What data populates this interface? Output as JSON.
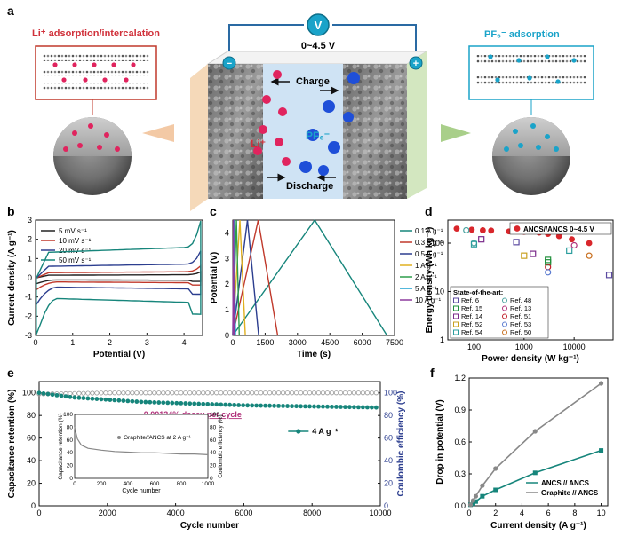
{
  "panel_a": {
    "letter": "a",
    "voltmeter_symbol": "V",
    "voltage_range": "0~4.5 V",
    "left_title": "Li⁺ adsorption/intercalation",
    "right_title": "PF₆⁻ adsorption",
    "charge_label": "Charge",
    "discharge_label": "Discharge",
    "li_label": "Li⁺",
    "pf6_label": "PF₆⁻",
    "minus_symbol": "−",
    "plus_symbol": "+",
    "colors": {
      "lithium": "#e0245e",
      "pf6": "#1f4fd8",
      "cyan_title": "#1aa3c9",
      "li_title": "#d0303a"
    }
  },
  "chart_data": [
    {
      "panel": "b",
      "type": "line",
      "title": "",
      "xlabel": "Potential (V)",
      "ylabel": "Current density (A g⁻¹)",
      "xlim": [
        0,
        4.5
      ],
      "ylim": [
        -3,
        3
      ],
      "xticks": [
        0,
        1,
        2,
        3,
        4
      ],
      "yticks": [
        -3,
        -2,
        -1,
        0,
        1,
        2,
        3
      ],
      "series": [
        {
          "name": "5 mV s⁻¹",
          "color": "#222222",
          "scale": 0.1
        },
        {
          "name": "10 mV s⁻¹",
          "color": "#c0392b",
          "scale": 0.2
        },
        {
          "name": "20 mV s⁻¹",
          "color": "#2c3e8f",
          "scale": 0.45
        },
        {
          "name": "50 mV s⁻¹",
          "color": "#16857b",
          "scale": 1.0
        }
      ]
    },
    {
      "panel": "c",
      "type": "line",
      "title": "",
      "xlabel": "Time (s)",
      "ylabel": "Potential (V)",
      "xlim": [
        0,
        7500
      ],
      "ylim": [
        0,
        4.5
      ],
      "xticks": [
        0,
        1500,
        3000,
        4500,
        6000,
        7500
      ],
      "yticks": [
        0,
        1,
        2,
        3,
        4
      ],
      "series": [
        {
          "name": "0.1 A g⁻¹",
          "color": "#16857b",
          "peak_t": 3800,
          "end_t": 7150
        },
        {
          "name": "0.3 A g⁻¹",
          "color": "#c0392b",
          "peak_t": 1180,
          "end_t": 2080
        },
        {
          "name": "0.5 A g⁻¹",
          "color": "#2c3e8f",
          "peak_t": 680,
          "end_t": 1200
        },
        {
          "name": "1 A g⁻¹",
          "color": "#e0b020",
          "peak_t": 330,
          "end_t": 580
        },
        {
          "name": "2 A g⁻¹",
          "color": "#2e9e4a",
          "peak_t": 170,
          "end_t": 300
        },
        {
          "name": "5 A g⁻¹",
          "color": "#1aa0d0",
          "peak_t": 70,
          "end_t": 125
        },
        {
          "name": "10 A g⁻¹",
          "color": "#8e3b9e",
          "peak_t": 35,
          "end_t": 62
        }
      ]
    },
    {
      "panel": "d",
      "type": "scatter",
      "title": "",
      "xlabel": "Power density (W kg⁻¹)",
      "ylabel": "Energy density (Wh kg⁻¹)",
      "xscale": "log",
      "yscale": "log",
      "xlim": [
        30,
        60000
      ],
      "ylim": [
        1,
        300
      ],
      "xtick_labels": [
        "100",
        "1000",
        "10000"
      ],
      "ytick_labels": [
        "1",
        "10",
        "100"
      ],
      "main_series": {
        "name": "ANCS//ANCS 0~4.5 V",
        "color": "#d9262b",
        "x": [
          45,
          90,
          150,
          220,
          500,
          1000,
          2000,
          3000,
          5000,
          9000,
          20000
        ],
        "y": [
          200,
          190,
          185,
          182,
          175,
          172,
          165,
          155,
          140,
          120,
          100
        ]
      },
      "refs_title": "State-of-the-art:",
      "refs": [
        {
          "name": "Ref. 6",
          "color": "#5b4aa0",
          "x": [
            700,
            50000
          ],
          "y": [
            105,
            22
          ]
        },
        {
          "name": "Ref. 48",
          "color": "#4aa3a0",
          "x": [
            70,
            100
          ],
          "y": [
            185,
            100
          ]
        },
        {
          "name": "Ref. 15",
          "color": "#1f8f3a",
          "x": [
            3000,
            3000
          ],
          "y": [
            45,
            40
          ]
        },
        {
          "name": "Ref. 13",
          "color": "#b0307a",
          "x": [
            10000
          ],
          "y": [
            90
          ]
        },
        {
          "name": "Ref. 14",
          "color": "#7a2a8a",
          "x": [
            140,
            1500
          ],
          "y": [
            120,
            60
          ]
        },
        {
          "name": "Ref. 51",
          "color": "#c0202a",
          "x": [
            3000
          ],
          "y": [
            32
          ]
        },
        {
          "name": "Ref. 52",
          "color": "#c8a020",
          "x": [
            1000
          ],
          "y": [
            55
          ]
        },
        {
          "name": "Ref. 53",
          "color": "#5b7bd0",
          "x": [
            3000
          ],
          "y": [
            25
          ]
        },
        {
          "name": "Ref. 54",
          "color": "#2c9e9e",
          "x": [
            100,
            8000
          ],
          "y": [
            95,
            70
          ]
        },
        {
          "name": "Ref. 50",
          "color": "#c87020",
          "x": [
            20000
          ],
          "y": [
            55
          ]
        }
      ]
    },
    {
      "panel": "e",
      "type": "scatter",
      "title": "",
      "xlabel": "Cycle number",
      "ylabel": "Capacitance retention (%)",
      "y2label": "Coulombic efficiency (%)",
      "xlim": [
        0,
        10000
      ],
      "ylim": [
        0,
        110
      ],
      "xticks": [
        0,
        2000,
        4000,
        6000,
        8000,
        10000
      ],
      "yticks": [
        0,
        20,
        40,
        60,
        80,
        100
      ],
      "annotation": "0.00134% decay per cycle",
      "series": [
        {
          "name": "4 A g⁻¹",
          "color": "#16857b",
          "x": [
            0,
            1000,
            2000,
            3000,
            4000,
            5000,
            6000,
            7000,
            8000,
            9000,
            10000
          ],
          "y": [
            100,
            96,
            94,
            92,
            91,
            90,
            89,
            88.5,
            88,
            87.5,
            87
          ]
        },
        {
          "name": "Coulombic efficiency",
          "color": "#999999",
          "x": [
            0,
            2000,
            4000,
            6000,
            8000,
            10000
          ],
          "y": [
            99,
            100,
            100,
            100,
            100,
            100
          ]
        }
      ],
      "inset": {
        "legend": "Graphite//ANCS at 2 A g⁻¹",
        "xlabel": "Cycle number",
        "ylabel": "Capacitance retention (%)",
        "y2label": "Coulombic efficiency (%)",
        "xticks": [
          0,
          200,
          400,
          600,
          800,
          1000
        ],
        "yticks": [
          0,
          20,
          40,
          60,
          80,
          100
        ],
        "x": [
          0,
          20,
          50,
          100,
          200,
          300,
          400,
          500,
          600,
          700,
          800,
          900,
          1000
        ],
        "y": [
          80,
          62,
          52,
          47,
          44,
          42,
          41,
          40,
          40,
          39,
          38,
          38,
          37
        ]
      }
    },
    {
      "panel": "f",
      "type": "line",
      "title": "",
      "xlabel": "Current density (A g⁻¹)",
      "ylabel": "Drop in potential (V)",
      "xlim": [
        0,
        10.5
      ],
      "ylim": [
        0,
        1.2
      ],
      "xticks": [
        0,
        2,
        4,
        6,
        8,
        10
      ],
      "yticks": [
        0.0,
        0.3,
        0.6,
        0.9,
        1.2
      ],
      "series": [
        {
          "name": "ANCS // ANCS",
          "color": "#16857b",
          "x": [
            0.1,
            0.3,
            0.5,
            1,
            2,
            5,
            10
          ],
          "y": [
            0.01,
            0.02,
            0.04,
            0.09,
            0.15,
            0.31,
            0.52
          ]
        },
        {
          "name": "Graphite // ANCS",
          "color": "#888888",
          "x": [
            0.1,
            0.3,
            0.5,
            1,
            2,
            5,
            10
          ],
          "y": [
            0.01,
            0.05,
            0.09,
            0.19,
            0.35,
            0.7,
            1.15
          ]
        }
      ]
    }
  ]
}
